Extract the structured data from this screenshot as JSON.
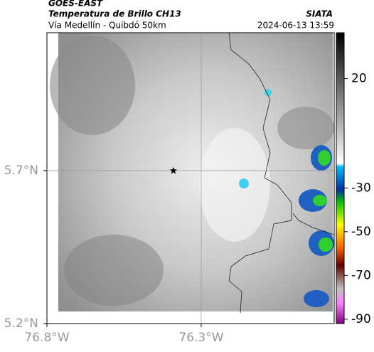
{
  "header": {
    "title": "GOES-EAST",
    "subtitle": "Temperatura de Brillo CH13",
    "source": "SIATA",
    "route": "Vía Medellín - Quibdó 50km",
    "timestamp": "2024-06-13 13:59"
  },
  "map": {
    "xlim": [
      -76.8,
      -75.869
    ],
    "ylim": [
      5.2,
      6.151
    ],
    "xticks": [
      {
        "value": -76.8,
        "label": "76.8°W"
      },
      {
        "value": -76.3,
        "label": "76.3°W"
      }
    ],
    "yticks": [
      {
        "value": 5.2,
        "label": "5.2°N"
      },
      {
        "value": 5.7,
        "label": "5.7°N"
      }
    ],
    "gridlines": [
      {
        "lon": -76.3
      },
      {
        "lat": 5.7
      }
    ],
    "marker": {
      "lon": -76.39,
      "lat": 5.7
    }
  },
  "colorbar": {
    "lim": [
      -92,
      41
    ],
    "ticks": [
      20,
      -30,
      -50,
      -70,
      -90
    ]
  }
}
